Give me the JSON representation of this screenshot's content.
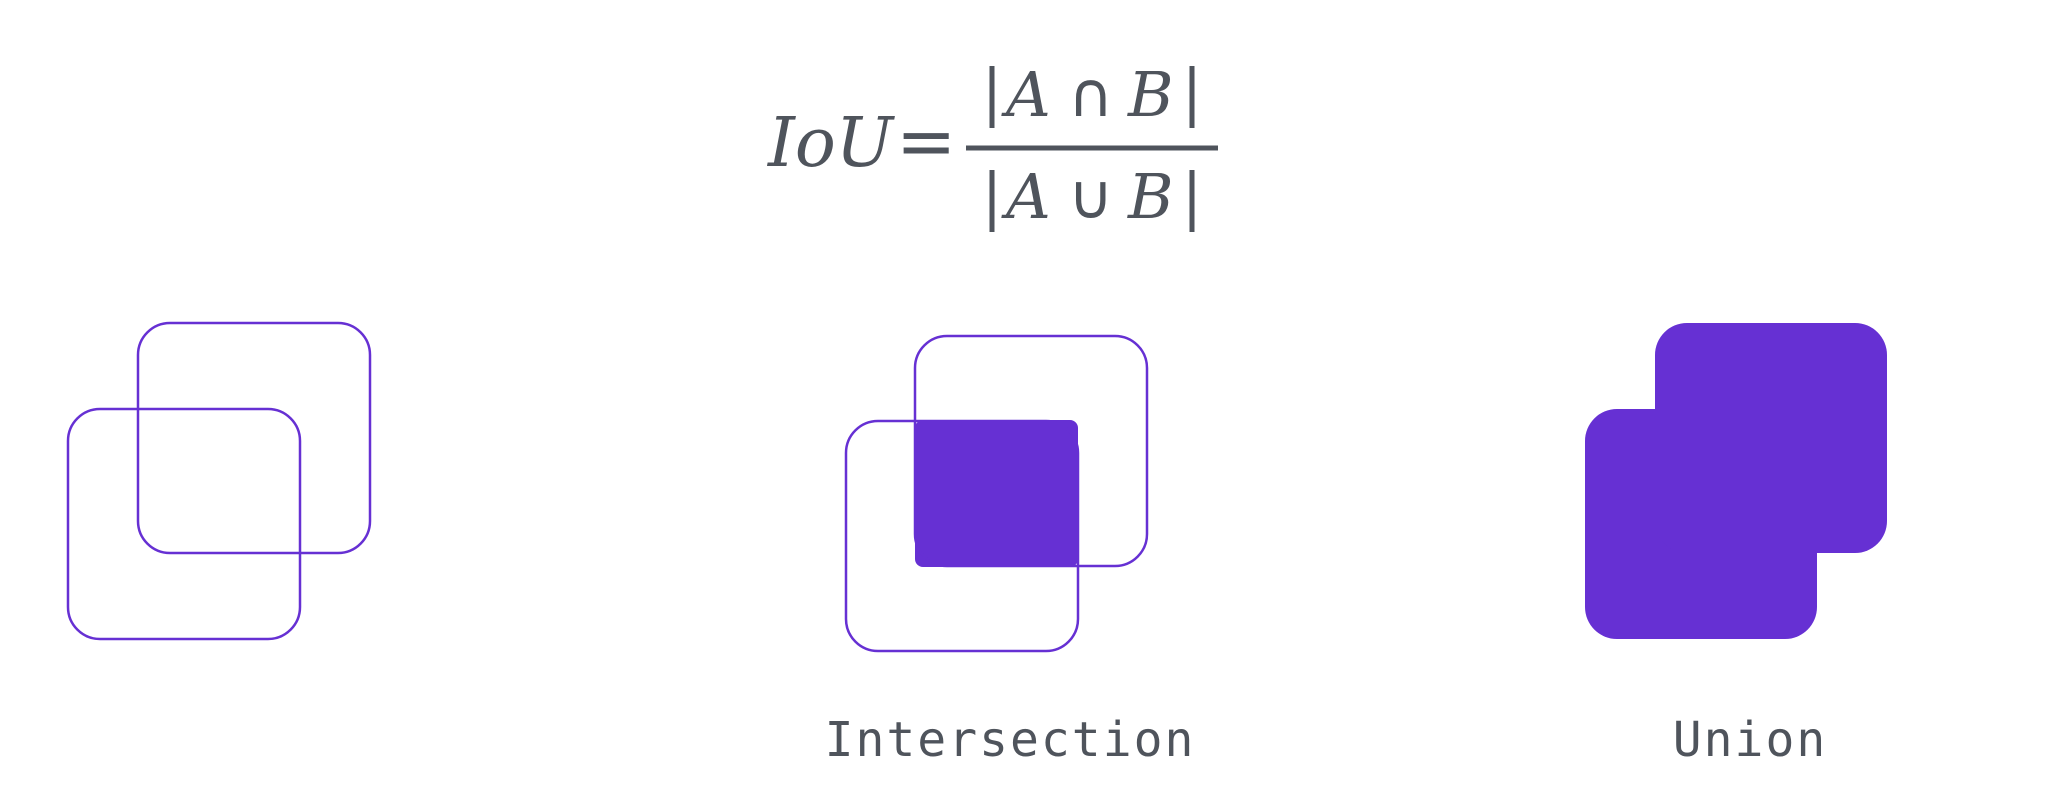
{
  "formula": {
    "lhs": "IoU",
    "equals": "=",
    "numerator": {
      "bar_left": "|",
      "a": "A",
      "op": "∩",
      "b": "B",
      "bar_right": "|"
    },
    "denominator": {
      "bar_left": "|",
      "a": "A",
      "op": "∪",
      "b": "B",
      "bar_right": "|"
    }
  },
  "panels": [
    {
      "name": "overlapping-boxes",
      "caption": ""
    },
    {
      "name": "intersection",
      "caption": "Intersection"
    },
    {
      "name": "union",
      "caption": "Union"
    }
  ],
  "colors": {
    "accent": "#6630d3",
    "text": "#4f545c",
    "background": "#ffffff"
  }
}
